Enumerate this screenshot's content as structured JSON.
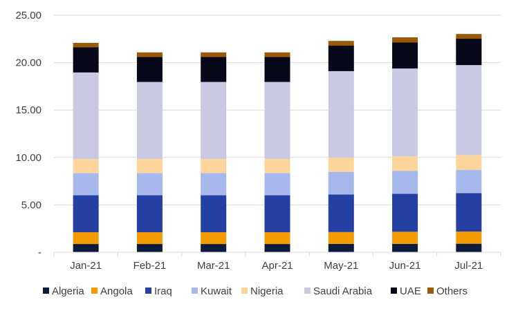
{
  "chart_data": {
    "type": "bar",
    "stacked": true,
    "categories": [
      "Jan-21",
      "Feb-21",
      "Mar-21",
      "Apr-21",
      "May-21",
      "Jun-21",
      "Jul-21"
    ],
    "ylim": [
      0,
      25
    ],
    "yticks": [
      0,
      5,
      10,
      15,
      20,
      25
    ],
    "ytick_labels": [
      "-",
      "5.00",
      "10.00",
      "15.00",
      "20.00",
      "25.00"
    ],
    "grid": true,
    "legend": "bottom",
    "series": [
      {
        "name": "Algeria",
        "color": "#0d1b3e",
        "values": [
          0.87,
          0.87,
          0.87,
          0.87,
          0.88,
          0.89,
          0.9
        ]
      },
      {
        "name": "Angola",
        "color": "#f59b00",
        "values": [
          1.24,
          1.24,
          1.24,
          1.24,
          1.25,
          1.27,
          1.28
        ]
      },
      {
        "name": "Iraq",
        "color": "#2440a3",
        "values": [
          3.9,
          3.9,
          3.9,
          3.9,
          3.96,
          4.01,
          4.06
        ]
      },
      {
        "name": "Kuwait",
        "color": "#a7b9ec",
        "values": [
          2.35,
          2.35,
          2.35,
          2.35,
          2.39,
          2.42,
          2.46
        ]
      },
      {
        "name": "Nigeria",
        "color": "#fdd49a",
        "values": [
          1.48,
          1.48,
          1.48,
          1.48,
          1.5,
          1.52,
          1.55
        ]
      },
      {
        "name": "Saudi Arabia",
        "color": "#c9c9e3",
        "values": [
          9.12,
          8.12,
          8.12,
          8.12,
          9.12,
          9.27,
          9.49
        ]
      },
      {
        "name": "UAE",
        "color": "#07091a",
        "values": [
          2.65,
          2.65,
          2.65,
          2.65,
          2.69,
          2.74,
          2.78
        ]
      },
      {
        "name": "Others",
        "color": "#9a5a0a",
        "values": [
          0.47,
          0.47,
          0.47,
          0.47,
          0.5,
          0.55,
          0.5
        ]
      }
    ]
  }
}
